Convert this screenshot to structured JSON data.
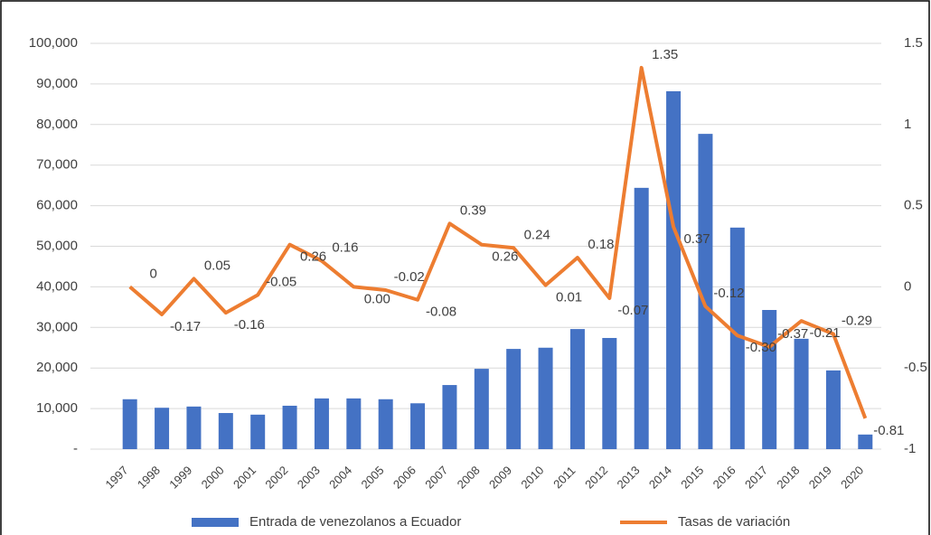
{
  "chart_data": {
    "type": "bar_line",
    "categories": [
      "1997",
      "1998",
      "1999",
      "2000",
      "2001",
      "2002",
      "2003",
      "2004",
      "2005",
      "2006",
      "2007",
      "2008",
      "2009",
      "2010",
      "2011",
      "2012",
      "2013",
      "2014",
      "2015",
      "2016",
      "2017",
      "2018",
      "2019",
      "2020"
    ],
    "series": [
      {
        "name": "Entrada de venezolanos a Ecuador",
        "color": "#4472c4",
        "type": "bar",
        "values": [
          12300,
          10200,
          10500,
          8900,
          8500,
          10700,
          12500,
          12500,
          12300,
          11300,
          15800,
          19800,
          24700,
          25000,
          29600,
          27400,
          64400,
          88200,
          77700,
          54600,
          34300,
          27200,
          19400,
          3600
        ]
      },
      {
        "name": "Tasas de variación",
        "color": "#ed7d31",
        "type": "line",
        "axis": "y2",
        "values": [
          0,
          -0.17,
          0.05,
          -0.16,
          -0.05,
          0.26,
          0.16,
          0,
          -0.02,
          -0.08,
          0.39,
          0.26,
          0.24,
          0.01,
          0.18,
          -0.07,
          1.35,
          0.37,
          -0.12,
          -0.3,
          -0.37,
          -0.21,
          -0.29,
          -0.81
        ],
        "value_labels": [
          "0",
          "-0.17",
          "0.05",
          "-0.16",
          "-0.05",
          "0.26",
          "0.16",
          "0.00",
          "-0.02",
          "-0.08",
          "0.39",
          "0.26",
          "0.24",
          "0.01",
          "0.18",
          "-0.07",
          "1.35",
          "0.37",
          "-0.12",
          "-0.30",
          "-0.37",
          "-0.21",
          "-0.29",
          "-0.81"
        ]
      }
    ],
    "ylim": [
      0,
      100000
    ],
    "yticks": [
      {
        "value": 0,
        "label": "-"
      },
      {
        "value": 10000,
        "label": "10,000"
      },
      {
        "value": 20000,
        "label": "20,000"
      },
      {
        "value": 30000,
        "label": "30,000"
      },
      {
        "value": 40000,
        "label": "40,000"
      },
      {
        "value": 50000,
        "label": "50,000"
      },
      {
        "value": 60000,
        "label": "60,000"
      },
      {
        "value": 70000,
        "label": "70,000"
      },
      {
        "value": 80000,
        "label": "80,000"
      },
      {
        "value": 90000,
        "label": "90,000"
      },
      {
        "value": 100000,
        "label": "100,000"
      }
    ],
    "y2lim": [
      -1,
      1.5
    ],
    "y2ticks": [
      -1,
      -0.5,
      0,
      0.5,
      1,
      1.5
    ],
    "grid": true,
    "legend": "bottom"
  }
}
